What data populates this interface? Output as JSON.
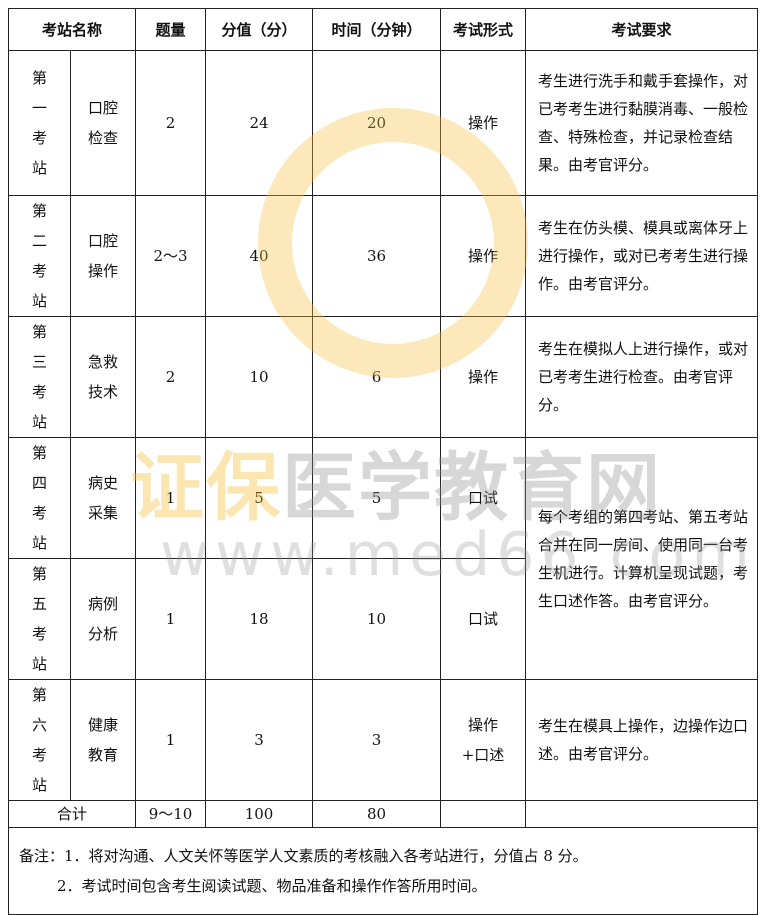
{
  "headers": [
    "考站名称",
    "题量",
    "分值（分）",
    "时间（分钟）",
    "考试形式",
    "考试要求"
  ],
  "rows": [
    {
      "station": "第一考站",
      "subject": "口腔检查",
      "count": "2",
      "score": "24",
      "time": "20",
      "form": "操作",
      "req": "考生进行洗手和戴手套操作，对已考考生进行黏膜消毒、一般检查、特殊检查，并记录检查结果。由考官评分。"
    },
    {
      "station": "第二考站",
      "subject": "口腔操作",
      "count": "2～3",
      "score": "40",
      "time": "36",
      "form": "操作",
      "req": "考生在仿头模、模具或离体牙上进行操作，或对已考考生进行操作。由考官评分。"
    },
    {
      "station": "第三考站",
      "subject": "急救技术",
      "count": "2",
      "score": "10",
      "time": "6",
      "form": "操作",
      "req": "考生在模拟人上进行操作，或对已考考生进行检查。由考官评分。"
    },
    {
      "station": "第四考站",
      "subject": "病史采集",
      "count": "1",
      "score": "5",
      "time": "5",
      "form": "口试",
      "req": "每个考组的第四考站、第五考站合并在同一房间、使用同一台考生机进行。计算机呈现试题，考生口述作答。由考官评分。"
    },
    {
      "station": "第五考站",
      "subject": "病例分析",
      "count": "1",
      "score": "18",
      "time": "10",
      "form": "口试"
    },
    {
      "station": "第六考站",
      "subject": "健康教育",
      "count": "1",
      "score": "3",
      "time": "3",
      "form": "操作+口述",
      "req": "考生在模具上操作，边操作边口述。由考官评分。"
    }
  ],
  "total": {
    "label": "合计",
    "count": "9～10",
    "score": "100",
    "time": "80"
  },
  "notes": [
    "备注：1．将对沟通、人文关怀等医学人文素质的考核融入各考站进行，分值占 8 分。",
    "2．考试时间包含考生阅读试题、物品准备和操作作答所用时间。"
  ],
  "watermark": {
    "text_brand": "证保",
    "text_rest": "医学教育网",
    "url": "www.med66.com",
    "color": "#f6be3c"
  }
}
